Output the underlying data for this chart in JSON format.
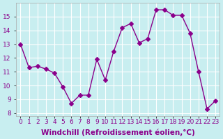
{
  "x": [
    0,
    1,
    2,
    3,
    4,
    5,
    6,
    7,
    8,
    9,
    10,
    11,
    12,
    13,
    14,
    15,
    16,
    17,
    18,
    19,
    20,
    21,
    22,
    23
  ],
  "y": [
    13.0,
    11.3,
    11.4,
    11.2,
    10.9,
    9.9,
    8.7,
    9.3,
    9.3,
    11.9,
    10.4,
    12.5,
    14.2,
    14.5,
    13.1,
    13.4,
    15.5,
    15.5,
    15.1,
    15.1,
    13.8,
    11.0,
    8.3,
    8.9
  ],
  "line_color": "#8B008B",
  "marker": "D",
  "marker_size": 3,
  "bg_color": "#c8eef0",
  "grid_color": "#ffffff",
  "xlabel": "Windchill (Refroidissement éolien,°C)",
  "xlabel_fontsize": 7.5,
  "tick_fontsize": 6.5,
  "ylim": [
    7.8,
    16.0
  ],
  "yticks": [
    8,
    9,
    10,
    11,
    12,
    13,
    14,
    15
  ],
  "xlim": [
    -0.5,
    23.5
  ],
  "xticks": [
    0,
    1,
    2,
    3,
    4,
    5,
    6,
    7,
    8,
    9,
    10,
    11,
    12,
    13,
    14,
    15,
    16,
    17,
    18,
    19,
    20,
    21,
    22,
    23
  ],
  "xtick_labels": [
    "0",
    "1",
    "2",
    "3",
    "4",
    "5",
    "6",
    "7",
    "8",
    "9",
    "10",
    "11",
    "12",
    "13",
    "14",
    "15",
    "16",
    "17",
    "18",
    "19",
    "20",
    "21",
    "22",
    "23"
  ]
}
